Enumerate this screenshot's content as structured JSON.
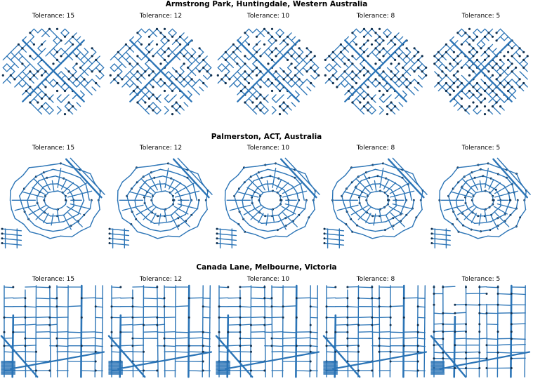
{
  "rows": [
    {
      "title": "Armstrong Park, Huntingdale, Western Australia",
      "style": "grid-diagonal",
      "panels": [
        {
          "tolerance": "Tolerance: 15"
        },
        {
          "tolerance": "Tolerance: 12"
        },
        {
          "tolerance": "Tolerance: 10"
        },
        {
          "tolerance": "Tolerance: 8"
        },
        {
          "tolerance": "Tolerance: 5"
        }
      ]
    },
    {
      "title": "Palmerston, ACT, Australia",
      "style": "curvy",
      "panels": [
        {
          "tolerance": "Tolerance: 15"
        },
        {
          "tolerance": "Tolerance: 12"
        },
        {
          "tolerance": "Tolerance: 10"
        },
        {
          "tolerance": "Tolerance: 8"
        },
        {
          "tolerance": "Tolerance: 5"
        }
      ]
    },
    {
      "title": "Canada Lane, Melbourne, Victoria",
      "style": "dense-grid",
      "panels": [
        {
          "tolerance": "Tolerance: 15"
        },
        {
          "tolerance": "Tolerance: 12"
        },
        {
          "tolerance": "Tolerance: 10"
        },
        {
          "tolerance": "Tolerance: 8"
        },
        {
          "tolerance": "Tolerance: 5"
        }
      ]
    }
  ],
  "colors": {
    "edge": "#2b74b6",
    "node": "#10304f",
    "background": "#ffffff"
  }
}
